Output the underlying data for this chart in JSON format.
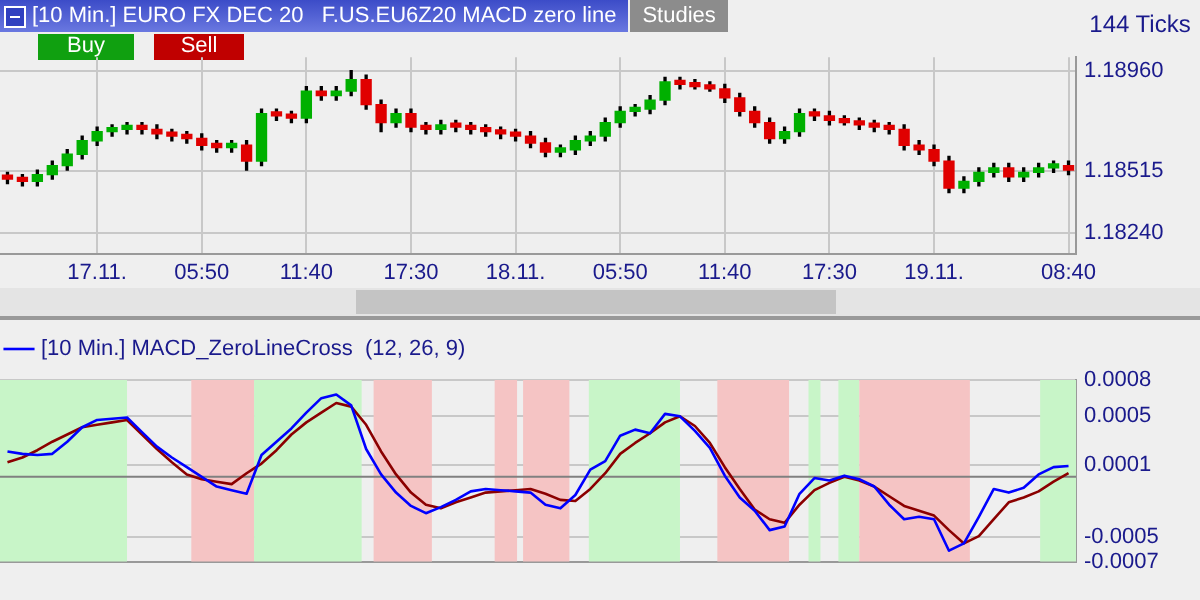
{
  "chart_data": [
    {
      "type": "candlestick",
      "title": "[10 Min.] EURO FX DEC 20   F.US.EU6Z20 MACD zero line",
      "annotations": [
        "Buy",
        "Sell",
        "Studies",
        "144 Ticks"
      ],
      "categories": [
        null,
        null,
        null,
        null,
        null,
        null,
        "17.11.",
        null,
        null,
        null,
        null,
        null,
        null,
        "05:50",
        null,
        null,
        null,
        null,
        null,
        null,
        "11:40",
        null,
        null,
        null,
        null,
        null,
        null,
        "17:30",
        null,
        null,
        null,
        null,
        null,
        null,
        "18.11.",
        null,
        null,
        null,
        null,
        null,
        null,
        "05:50",
        null,
        null,
        null,
        null,
        null,
        null,
        "11:40",
        null,
        null,
        null,
        null,
        null,
        null,
        "17:30",
        null,
        null,
        null,
        null,
        null,
        null,
        "19.11.",
        null,
        null,
        null,
        null,
        null,
        null,
        null,
        null,
        "08:40"
      ],
      "ohlc": [
        [
          1.1849,
          1.1851,
          1.1846,
          1.1848
        ],
        [
          1.1848,
          1.185,
          1.1845,
          1.1847
        ],
        [
          1.1847,
          1.1852,
          1.1845,
          1.185
        ],
        [
          1.185,
          1.1856,
          1.1848,
          1.1854
        ],
        [
          1.1854,
          1.1861,
          1.1852,
          1.1859
        ],
        [
          1.1859,
          1.1867,
          1.1857,
          1.1865
        ],
        [
          1.1865,
          1.1871,
          1.1863,
          1.1869
        ],
        [
          1.1869,
          1.1872,
          1.1867,
          1.187
        ],
        [
          1.187,
          1.1873,
          1.1868,
          1.1871
        ],
        [
          1.1871,
          1.1873,
          1.1868,
          1.187
        ],
        [
          1.187,
          1.1872,
          1.1866,
          1.1868
        ],
        [
          1.1868,
          1.187,
          1.1865,
          1.1867
        ],
        [
          1.1867,
          1.1869,
          1.1864,
          1.1866
        ],
        [
          1.1866,
          1.1868,
          1.1861,
          1.1863
        ],
        [
          1.1863,
          1.1865,
          1.186,
          1.1862
        ],
        [
          1.1862,
          1.1865,
          1.186,
          1.1863
        ],
        [
          1.1863,
          1.1865,
          1.1852,
          1.1856
        ],
        [
          1.1856,
          1.1879,
          1.1854,
          1.1877
        ],
        [
          1.1877,
          1.1879,
          1.1874,
          1.1876
        ],
        [
          1.1876,
          1.1878,
          1.1873,
          1.1875
        ],
        [
          1.1875,
          1.1889,
          1.1873,
          1.1887
        ],
        [
          1.1887,
          1.1889,
          1.1883,
          1.1885
        ],
        [
          1.1885,
          1.1889,
          1.1883,
          1.1887
        ],
        [
          1.1887,
          1.1896,
          1.1885,
          1.1892
        ],
        [
          1.1892,
          1.1894,
          1.1879,
          1.1881
        ],
        [
          1.1881,
          1.1883,
          1.1869,
          1.1873
        ],
        [
          1.1873,
          1.1879,
          1.1871,
          1.1877
        ],
        [
          1.1877,
          1.1879,
          1.1869,
          1.1871
        ],
        [
          1.1871,
          1.1873,
          1.1868,
          1.187
        ],
        [
          1.187,
          1.1874,
          1.1868,
          1.1872
        ],
        [
          1.1872,
          1.1874,
          1.1869,
          1.1871
        ],
        [
          1.1871,
          1.1873,
          1.1868,
          1.187
        ],
        [
          1.187,
          1.1872,
          1.1867,
          1.1869
        ],
        [
          1.1869,
          1.1871,
          1.1866,
          1.1868
        ],
        [
          1.1868,
          1.187,
          1.1865,
          1.1867
        ],
        [
          1.1867,
          1.1869,
          1.1862,
          1.1864
        ],
        [
          1.1864,
          1.1866,
          1.1858,
          1.186
        ],
        [
          1.186,
          1.1863,
          1.1858,
          1.1861
        ],
        [
          1.1861,
          1.1867,
          1.1859,
          1.1865
        ],
        [
          1.1865,
          1.1869,
          1.1863,
          1.1867
        ],
        [
          1.1867,
          1.1875,
          1.1865,
          1.1873
        ],
        [
          1.1873,
          1.188,
          1.1871,
          1.1878
        ],
        [
          1.1878,
          1.1881,
          1.1876,
          1.1879
        ],
        [
          1.1879,
          1.1885,
          1.1877,
          1.1883
        ],
        [
          1.1883,
          1.1893,
          1.1881,
          1.1891
        ],
        [
          1.1891,
          1.1893,
          1.1888,
          1.189
        ],
        [
          1.189,
          1.1892,
          1.1888,
          1.1889
        ],
        [
          1.1889,
          1.1891,
          1.1887,
          1.1888
        ],
        [
          1.1888,
          1.189,
          1.1882,
          1.1884
        ],
        [
          1.1884,
          1.1886,
          1.1876,
          1.1878
        ],
        [
          1.1878,
          1.188,
          1.1871,
          1.1873
        ],
        [
          1.1873,
          1.1875,
          1.1864,
          1.1866
        ],
        [
          1.1866,
          1.1871,
          1.1864,
          1.1869
        ],
        [
          1.1869,
          1.1879,
          1.1867,
          1.1877
        ],
        [
          1.1877,
          1.1879,
          1.1874,
          1.1876
        ],
        [
          1.1876,
          1.1878,
          1.1872,
          1.1874
        ],
        [
          1.1874,
          1.1876,
          1.1872,
          1.1873
        ],
        [
          1.1873,
          1.1875,
          1.187,
          1.1872
        ],
        [
          1.1872,
          1.1874,
          1.1869,
          1.1871
        ],
        [
          1.1871,
          1.1873,
          1.1868,
          1.187
        ],
        [
          1.187,
          1.1872,
          1.1861,
          1.1863
        ],
        [
          1.1863,
          1.1865,
          1.1859,
          1.1861
        ],
        [
          1.1861,
          1.1863,
          1.1854,
          1.1856
        ],
        [
          1.1856,
          1.1858,
          1.1842,
          1.1844
        ],
        [
          1.1844,
          1.1849,
          1.1842,
          1.1847
        ],
        [
          1.1847,
          1.1853,
          1.1845,
          1.1851
        ],
        [
          1.1851,
          1.1855,
          1.1849,
          1.1853
        ],
        [
          1.1853,
          1.1855,
          1.1847,
          1.1849
        ],
        [
          1.1849,
          1.1853,
          1.1847,
          1.1851
        ],
        [
          1.1851,
          1.1855,
          1.1849,
          1.1853
        ],
        [
          1.1853,
          1.1856,
          1.1851,
          1.1854
        ],
        [
          1.1854,
          1.1856,
          1.185,
          1.1852
        ]
      ],
      "ylim": [
        1.1815,
        1.1902
      ],
      "yticks": [
        {
          "value": 1.1824,
          "label": "1.18240"
        },
        {
          "value": 1.18515,
          "label": "1.18515"
        },
        {
          "value": 1.1896,
          "label": "1.18960"
        }
      ],
      "grid": true
    },
    {
      "type": "line",
      "legend": "top left",
      "grid": "y",
      "categories": [
        null,
        null,
        null,
        null,
        null,
        null,
        null,
        null,
        null,
        null,
        null,
        null,
        null,
        null,
        null,
        null,
        null,
        null,
        null,
        null,
        null,
        null,
        null,
        null,
        null,
        null,
        null,
        null,
        null,
        null,
        null,
        null,
        null,
        null,
        null,
        null,
        null,
        null,
        null,
        null,
        null,
        null,
        null,
        null,
        null,
        null,
        null,
        null,
        null,
        null,
        null,
        null,
        null,
        null,
        null,
        null,
        null,
        null,
        null,
        null,
        null,
        null,
        null,
        null,
        null,
        null,
        null,
        null,
        null,
        null,
        null,
        null
      ],
      "series": [
        {
          "name": "[10 Min.] MACD_ZeroLineCross  (12, 26, 9)",
          "color": "#0000ff",
          "values": [
            0.00021,
            0.00019,
            0.00018,
            0.00019,
            0.00029,
            0.00041,
            0.00047,
            0.00048,
            0.00049,
            0.00037,
            0.00025,
            0.00016,
            8e-05,
            0,
            -8e-05,
            -0.00011,
            -0.00014,
            0.00018,
            0.00029,
            0.0004,
            0.00053,
            0.00065,
            0.00068,
            0.00059,
            0.00023,
            2e-05,
            -0.00013,
            -0.00024,
            -0.0003,
            -0.00025,
            -0.00019,
            -0.00012,
            -0.0001,
            -0.00011,
            -0.00012,
            -0.00013,
            -0.00023,
            -0.00026,
            -0.00015,
            6e-05,
            0.00013,
            0.00034,
            0.00039,
            0.00036,
            0.00052,
            0.0005,
            0.00038,
            0.00024,
            1e-05,
            -0.00017,
            -0.00028,
            -0.00044,
            -0.00041,
            -0.00014,
            -1e-05,
            -3e-05,
            1e-05,
            -2e-05,
            -8e-05,
            -0.00023,
            -0.00035,
            -0.00033,
            -0.00035,
            -0.00061,
            -0.00055,
            -0.00033,
            -0.0001,
            -0.00013,
            -9e-05,
            2e-05,
            8e-05,
            9e-05
          ]
        },
        {
          "color": "#8b0000",
          "values": [
            0.00012,
            0.00016,
            0.00022,
            0.00029,
            0.00035,
            0.00041,
            0.00043,
            0.00045,
            0.00047,
            0.00035,
            0.00023,
            0.00012,
            2e-05,
            -2e-05,
            -4e-05,
            -6e-05,
            3e-05,
            0.00011,
            0.00022,
            0.00035,
            0.00045,
            0.00053,
            0.00061,
            0.00058,
            0.00043,
            0.00021,
            2e-05,
            -0.00013,
            -0.00023,
            -0.00026,
            -0.00021,
            -0.00017,
            -0.00013,
            -0.00012,
            -0.00011,
            -0.0001,
            -0.00014,
            -0.00019,
            -0.0002,
            -0.0001,
            3e-05,
            0.00019,
            0.00028,
            0.00036,
            0.00045,
            0.0005,
            0.00042,
            0.00028,
            8e-05,
            -0.0001,
            -0.00027,
            -0.00035,
            -0.00038,
            -0.00023,
            -0.00011,
            -5e-05,
            0,
            -3e-05,
            -8e-05,
            -0.00016,
            -0.00024,
            -0.00028,
            -0.00032,
            -0.00044,
            -0.00055,
            -0.00049,
            -0.00035,
            -0.00021,
            -0.00017,
            -0.00012,
            -4e-05,
            3e-05
          ]
        }
      ],
      "ylim": [
        -0.0007,
        0.0008
      ],
      "yticks": [
        -0.0007,
        -0.0005,
        0.0001,
        0.0005,
        0.0008
      ],
      "ref_lines": [
        {
          "axis": "y",
          "value": 0,
          "color": "#808080"
        }
      ]
    }
  ]
}
